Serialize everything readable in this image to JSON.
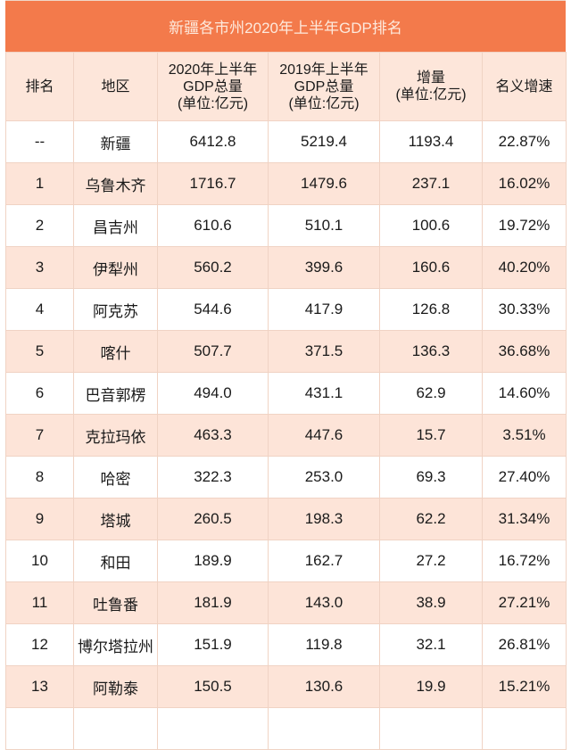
{
  "title": "新疆各市州2020年上半年GDP排名",
  "colors": {
    "banner": "#f37a4b",
    "header_bg": "#fde6da",
    "row_alt": "#fde4d8",
    "border": "#f0d3c4"
  },
  "headers": [
    {
      "lines": [
        "排名"
      ]
    },
    {
      "lines": [
        "地区"
      ]
    },
    {
      "lines": [
        "2020年上半年",
        "GDP总量",
        "(单位:亿元)"
      ]
    },
    {
      "lines": [
        "2019年上半年",
        "GDP总量",
        "(单位:亿元)"
      ]
    },
    {
      "lines": [
        "增量",
        "(单位:亿元)"
      ]
    },
    {
      "lines": [
        "名义增速"
      ]
    }
  ],
  "rows": [
    [
      "--",
      "新疆",
      "6412.8",
      "5219.4",
      "1193.4",
      "22.87%"
    ],
    [
      "1",
      "乌鲁木齐",
      "1716.7",
      "1479.6",
      "237.1",
      "16.02%"
    ],
    [
      "2",
      "昌吉州",
      "610.6",
      "510.1",
      "100.6",
      "19.72%"
    ],
    [
      "3",
      "伊犁州",
      "560.2",
      "399.6",
      "160.6",
      "40.20%"
    ],
    [
      "4",
      "阿克苏",
      "544.6",
      "417.9",
      "126.8",
      "30.33%"
    ],
    [
      "5",
      "喀什",
      "507.7",
      "371.5",
      "136.3",
      "36.68%"
    ],
    [
      "6",
      "巴音郭楞",
      "494.0",
      "431.1",
      "62.9",
      "14.60%"
    ],
    [
      "7",
      "克拉玛依",
      "463.3",
      "447.6",
      "15.7",
      "3.51%"
    ],
    [
      "8",
      "哈密",
      "322.3",
      "253.0",
      "69.3",
      "27.40%"
    ],
    [
      "9",
      "塔城",
      "260.5",
      "198.3",
      "62.2",
      "31.34%"
    ],
    [
      "10",
      "和田",
      "189.9",
      "162.7",
      "27.2",
      "16.72%"
    ],
    [
      "11",
      "吐鲁番",
      "181.9",
      "143.0",
      "38.9",
      "27.21%"
    ],
    [
      "12",
      "博尔塔拉州",
      "151.9",
      "119.8",
      "32.1",
      "26.81%"
    ],
    [
      "13",
      "阿勒泰",
      "150.5",
      "130.6",
      "19.9",
      "15.21%"
    ],
    [
      "",
      "",
      "",
      "",
      "",
      ""
    ]
  ]
}
